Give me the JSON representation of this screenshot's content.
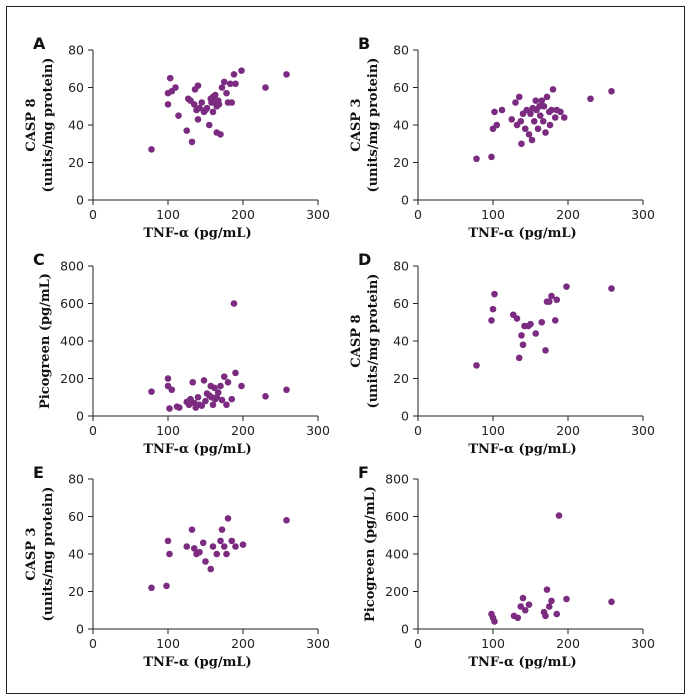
{
  "chart_data": [
    {
      "type": "scatter",
      "panel": "A",
      "xlabel": "TNF-α (pg/mL)",
      "ylabel": [
        "CASP 8",
        "(units/mg protein)"
      ],
      "xlim": [
        0,
        300
      ],
      "ylim": [
        0,
        80
      ],
      "xticks": [
        0,
        100,
        200,
        300
      ],
      "yticks": [
        0,
        20,
        40,
        60,
        80
      ],
      "point_color": "#7b2b80",
      "x": [
        78,
        100,
        100,
        103,
        105,
        110,
        114,
        125,
        127,
        130,
        132,
        135,
        136,
        138,
        140,
        140,
        142,
        145,
        148,
        150,
        152,
        155,
        157,
        158,
        160,
        160,
        162,
        163,
        165,
        165,
        167,
        168,
        170,
        172,
        175,
        178,
        180,
        183,
        185,
        188,
        190,
        198,
        230,
        258
      ],
      "y": [
        27,
        57,
        51,
        65,
        58,
        60,
        45,
        37,
        54,
        53,
        31,
        51,
        59,
        48,
        43,
        61,
        49,
        52,
        47,
        48,
        49,
        40,
        54,
        52,
        55,
        47,
        52,
        56,
        36,
        50,
        53,
        51,
        35,
        60,
        63,
        57,
        52,
        62,
        52,
        67,
        62,
        69,
        60,
        67
      ]
    },
    {
      "type": "scatter",
      "panel": "B",
      "xlabel": "TNF-α (pg/mL)",
      "ylabel": [
        "CASP 3",
        "(units/mg protein)"
      ],
      "xlim": [
        0,
        300
      ],
      "ylim": [
        0,
        80
      ],
      "xticks": [
        0,
        100,
        200,
        300
      ],
      "yticks": [
        0,
        20,
        40,
        60,
        80
      ],
      "point_color": "#7b2b80",
      "x": [
        78,
        98,
        100,
        102,
        105,
        112,
        125,
        130,
        132,
        135,
        137,
        138,
        140,
        143,
        145,
        148,
        150,
        152,
        153,
        155,
        157,
        158,
        160,
        162,
        163,
        165,
        167,
        168,
        170,
        172,
        175,
        176,
        178,
        180,
        183,
        185,
        190,
        195,
        230,
        258
      ],
      "y": [
        22,
        23,
        38,
        47,
        40,
        48,
        43,
        52,
        40,
        55,
        42,
        30,
        46,
        38,
        48,
        35,
        46,
        32,
        49,
        42,
        53,
        48,
        38,
        50,
        45,
        53,
        42,
        50,
        36,
        55,
        47,
        40,
        48,
        59,
        44,
        48,
        47,
        44,
        54,
        58
      ]
    },
    {
      "type": "scatter",
      "panel": "C",
      "xlabel": "TNF-α (pg/mL)",
      "ylabel": [
        "Picogreen (pg/mL)"
      ],
      "xlim": [
        0,
        300
      ],
      "ylim": [
        0,
        800
      ],
      "xticks": [
        0,
        100,
        200,
        300
      ],
      "yticks": [
        0,
        200,
        400,
        600,
        800
      ],
      "point_color": "#7b2b80",
      "x": [
        78,
        100,
        100,
        102,
        105,
        112,
        115,
        125,
        128,
        130,
        133,
        135,
        137,
        140,
        142,
        145,
        148,
        150,
        152,
        155,
        157,
        158,
        160,
        162,
        163,
        165,
        167,
        170,
        172,
        175,
        178,
        180,
        185,
        188,
        190,
        198,
        230,
        258
      ],
      "y": [
        130,
        160,
        200,
        40,
        140,
        50,
        45,
        75,
        60,
        90,
        180,
        70,
        45,
        100,
        60,
        55,
        190,
        80,
        120,
        110,
        160,
        100,
        60,
        150,
        90,
        100,
        125,
        160,
        85,
        210,
        60,
        180,
        90,
        600,
        230,
        160,
        105,
        140
      ]
    },
    {
      "type": "scatter",
      "panel": "D",
      "xlabel": "TNF-α (pg/mL)",
      "ylabel": [
        "CASP 8",
        "(units/mg protein)"
      ],
      "xlim": [
        0,
        300
      ],
      "ylim": [
        0,
        80
      ],
      "xticks": [
        0,
        100,
        200,
        300
      ],
      "yticks": [
        0,
        20,
        40,
        60,
        80
      ],
      "point_color": "#7b2b80",
      "x": [
        78,
        98,
        100,
        102,
        127,
        132,
        135,
        138,
        140,
        142,
        147,
        150,
        157,
        165,
        170,
        172,
        175,
        178,
        183,
        185,
        198,
        258
      ],
      "y": [
        27,
        51,
        57,
        65,
        54,
        52,
        31,
        43,
        38,
        48,
        48,
        49,
        44,
        50,
        35,
        61,
        61,
        64,
        51,
        62,
        69,
        68
      ]
    },
    {
      "type": "scatter",
      "panel": "E",
      "xlabel": "TNF-α (pg/mL)",
      "ylabel": [
        "CASP 3",
        "(units/mg protein)"
      ],
      "xlim": [
        0,
        300
      ],
      "ylim": [
        0,
        80
      ],
      "xticks": [
        0,
        100,
        200,
        300
      ],
      "yticks": [
        0,
        20,
        40,
        60,
        80
      ],
      "point_color": "#7b2b80",
      "x": [
        78,
        98,
        100,
        102,
        125,
        132,
        135,
        138,
        142,
        147,
        150,
        157,
        160,
        165,
        170,
        172,
        175,
        178,
        180,
        185,
        190,
        200,
        258
      ],
      "y": [
        22,
        23,
        47,
        40,
        44,
        53,
        43,
        40,
        41,
        46,
        36,
        32,
        44,
        40,
        47,
        53,
        44,
        40,
        59,
        47,
        44,
        45,
        58
      ]
    },
    {
      "type": "scatter",
      "panel": "F",
      "xlabel": "TNF-α (pg/mL)",
      "ylabel": [
        "Picogreen (pg/mL)"
      ],
      "xlim": [
        0,
        300
      ],
      "ylim": [
        0,
        800
      ],
      "xticks": [
        0,
        100,
        200,
        300
      ],
      "yticks": [
        0,
        200,
        400,
        600,
        800
      ],
      "point_color": "#7b2b80",
      "x": [
        98,
        100,
        102,
        128,
        133,
        137,
        140,
        143,
        148,
        168,
        170,
        172,
        175,
        178,
        185,
        188,
        198,
        258
      ],
      "y": [
        80,
        60,
        40,
        70,
        60,
        120,
        165,
        100,
        130,
        90,
        70,
        210,
        120,
        150,
        80,
        605,
        160,
        145
      ]
    }
  ]
}
